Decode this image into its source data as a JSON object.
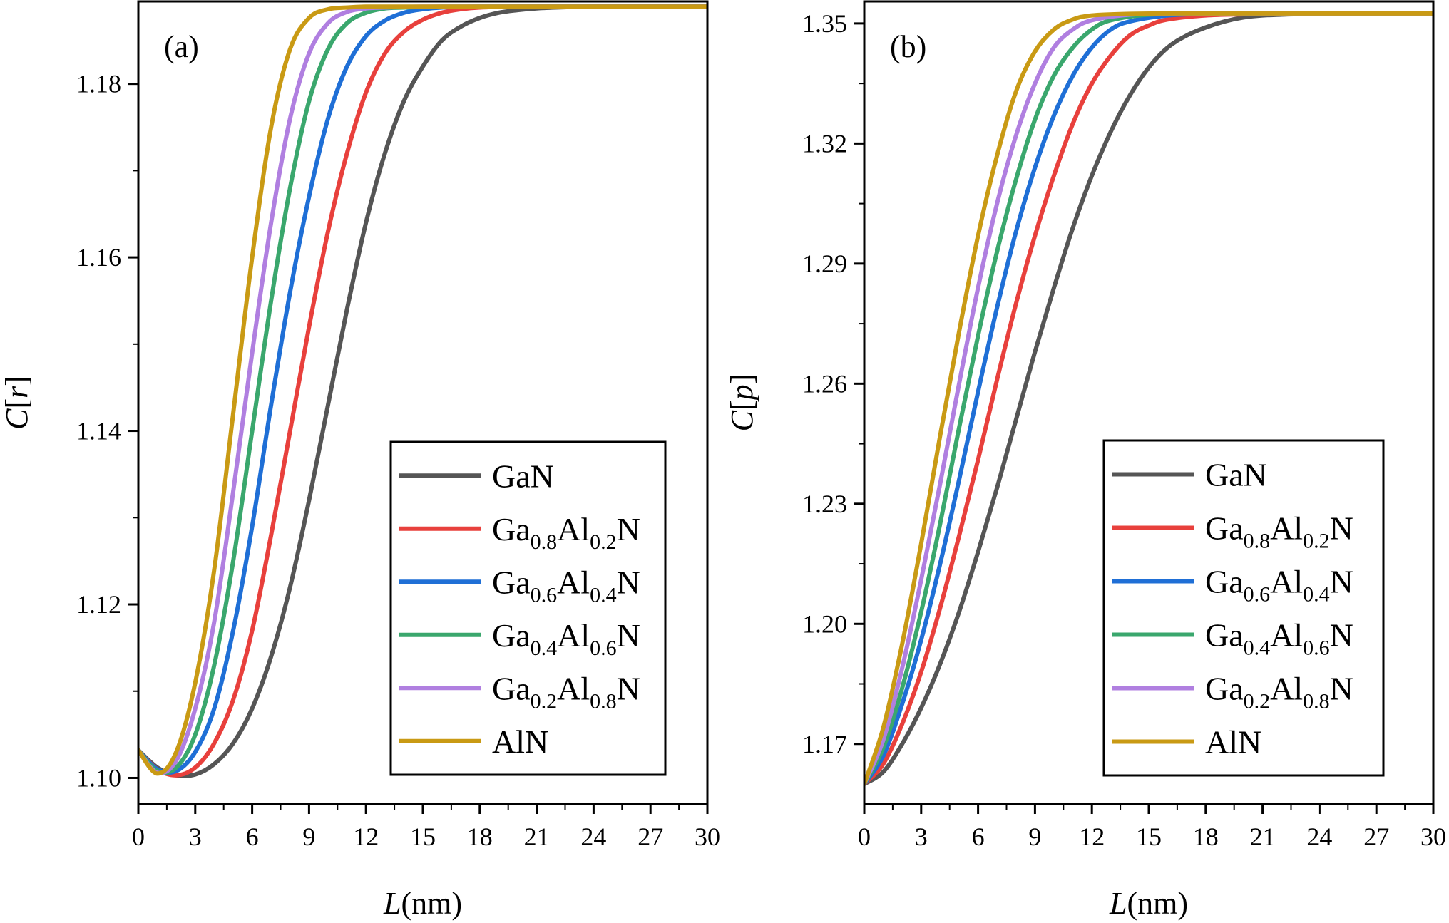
{
  "chart_data": [
    {
      "panel": "(a)",
      "type": "line",
      "xlabel_var": "L",
      "xlabel_unit": "(nm)",
      "ylabel_var": "C",
      "ylabel_bracket": "r",
      "xlim": [
        0,
        30
      ],
      "ylim": [
        1.097,
        1.1895
      ],
      "xticks": [
        0,
        3,
        6,
        9,
        12,
        15,
        18,
        21,
        24,
        27,
        30
      ],
      "xtick_labels": [
        "0",
        "3",
        "6",
        "9",
        "12",
        "15",
        "18",
        "21",
        "24",
        "27",
        "30"
      ],
      "yticks": [
        1.1,
        1.12,
        1.14,
        1.16,
        1.18
      ],
      "ytick_labels": [
        "1.10",
        "1.12",
        "1.14",
        "1.16",
        "1.18"
      ],
      "legend_position": "bottom-right",
      "series": [
        {
          "name": "GaN",
          "base": "GaN",
          "color": "#555555",
          "x": [
            0,
            1,
            2,
            3,
            4,
            5,
            6,
            7,
            8,
            9,
            10,
            11,
            12,
            13,
            14,
            15,
            16,
            17,
            18,
            19,
            20,
            21,
            22,
            24,
            26,
            28,
            30
          ],
          "values": [
            1.1032,
            1.1012,
            1.1003,
            1.1004,
            1.1016,
            1.104,
            1.108,
            1.114,
            1.122,
            1.132,
            1.143,
            1.154,
            1.164,
            1.172,
            1.178,
            1.182,
            1.185,
            1.1866,
            1.1876,
            1.1882,
            1.1885,
            1.1887,
            1.1888,
            1.1889,
            1.1889,
            1.1889,
            1.1889
          ]
        },
        {
          "name": "Ga0.8Al0.2N",
          "base": "Ga",
          "sub1": "0.8",
          "mid": "Al",
          "sub2": "0.2",
          "end": "N",
          "color": "#e8403c",
          "x": [
            0,
            1,
            2,
            3,
            4,
            5,
            6,
            7,
            8,
            9,
            10,
            11,
            12,
            13,
            14,
            15,
            16,
            17,
            18,
            20,
            22,
            24,
            27,
            30
          ],
          "values": [
            1.1032,
            1.101,
            1.1003,
            1.1012,
            1.104,
            1.109,
            1.117,
            1.128,
            1.14,
            1.152,
            1.163,
            1.172,
            1.179,
            1.1835,
            1.186,
            1.1874,
            1.1882,
            1.1886,
            1.1888,
            1.1889,
            1.1889,
            1.1889,
            1.1889,
            1.1889
          ]
        },
        {
          "name": "Ga0.6Al0.4N",
          "base": "Ga",
          "sub1": "0.6",
          "mid": "Al",
          "sub2": "0.4",
          "end": "N",
          "color": "#1f6fd6",
          "x": [
            0,
            1,
            2,
            3,
            4,
            5,
            6,
            7,
            8,
            9,
            10,
            11,
            12,
            13,
            14,
            15,
            16,
            18,
            21,
            24,
            27,
            30
          ],
          "values": [
            1.1032,
            1.101,
            1.1008,
            1.103,
            1.108,
            1.117,
            1.129,
            1.143,
            1.156,
            1.167,
            1.176,
            1.182,
            1.1855,
            1.1873,
            1.1882,
            1.1886,
            1.1888,
            1.1889,
            1.1889,
            1.1889,
            1.1889,
            1.1889
          ]
        },
        {
          "name": "Ga0.4Al0.6N",
          "base": "Ga",
          "sub1": "0.4",
          "mid": "Al",
          "sub2": "0.6",
          "end": "N",
          "color": "#3aa76d",
          "x": [
            0,
            1,
            2,
            3,
            4,
            5,
            6,
            7,
            8,
            9,
            10,
            11,
            12,
            13,
            14,
            16,
            18,
            21,
            24,
            27,
            30
          ],
          "values": [
            1.1032,
            1.1008,
            1.1012,
            1.105,
            1.113,
            1.125,
            1.14,
            1.155,
            1.168,
            1.178,
            1.184,
            1.187,
            1.1882,
            1.1887,
            1.1888,
            1.1889,
            1.1889,
            1.1889,
            1.1889,
            1.1889,
            1.1889
          ]
        },
        {
          "name": "Ga0.2Al0.8N",
          "base": "Ga",
          "sub1": "0.2",
          "mid": "Al",
          "sub2": "0.8",
          "end": "N",
          "color": "#b07fe0",
          "x": [
            0,
            1,
            2,
            3,
            4,
            5,
            6,
            7,
            8,
            9,
            10,
            11,
            12,
            13,
            15,
            18,
            21,
            24,
            27,
            30
          ],
          "values": [
            1.1032,
            1.1006,
            1.102,
            1.108,
            1.118,
            1.133,
            1.149,
            1.164,
            1.176,
            1.1835,
            1.187,
            1.1883,
            1.1887,
            1.1888,
            1.1889,
            1.1889,
            1.1889,
            1.1889,
            1.1889,
            1.1889
          ]
        },
        {
          "name": "AlN",
          "base": "AlN",
          "color": "#c99a14",
          "x": [
            0,
            1,
            2,
            3,
            4,
            5,
            6,
            7,
            8,
            9,
            10,
            11,
            12,
            14,
            16,
            18,
            21,
            24,
            27,
            30
          ],
          "values": [
            1.1032,
            1.1005,
            1.103,
            1.111,
            1.124,
            1.142,
            1.16,
            1.175,
            1.184,
            1.1876,
            1.1886,
            1.1888,
            1.1889,
            1.1889,
            1.1889,
            1.1889,
            1.1889,
            1.1889,
            1.1889,
            1.1889
          ]
        }
      ]
    },
    {
      "panel": "(b)",
      "type": "line",
      "xlabel_var": "L",
      "xlabel_unit": "(nm)",
      "ylabel_var": "C",
      "ylabel_bracket": "p",
      "xlim": [
        0,
        30
      ],
      "ylim": [
        1.155,
        1.3555
      ],
      "xticks": [
        0,
        3,
        6,
        9,
        12,
        15,
        18,
        21,
        24,
        27,
        30
      ],
      "xtick_labels": [
        "0",
        "3",
        "6",
        "9",
        "12",
        "15",
        "18",
        "21",
        "24",
        "27",
        "30"
      ],
      "yticks": [
        1.17,
        1.2,
        1.23,
        1.26,
        1.29,
        1.32,
        1.35
      ],
      "ytick_labels": [
        "1.17",
        "1.20",
        "1.23",
        "1.26",
        "1.29",
        "1.32",
        "1.35"
      ],
      "legend_position": "bottom-right",
      "series": [
        {
          "name": "GaN",
          "base": "GaN",
          "color": "#555555",
          "x": [
            0,
            1,
            2,
            3,
            4,
            5,
            6,
            7,
            8,
            9,
            10,
            11,
            12,
            13,
            14,
            15,
            16,
            17,
            18,
            19,
            20,
            21,
            22,
            24,
            26,
            28,
            30
          ],
          "values": [
            1.16,
            1.163,
            1.17,
            1.179,
            1.19,
            1.203,
            1.218,
            1.234,
            1.251,
            1.268,
            1.284,
            1.299,
            1.312,
            1.323,
            1.332,
            1.339,
            1.344,
            1.347,
            1.349,
            1.3505,
            1.3515,
            1.352,
            1.3522,
            1.3525,
            1.3525,
            1.3525,
            1.3525
          ]
        },
        {
          "name": "Ga0.8Al0.2N",
          "base": "Ga",
          "sub1": "0.8",
          "mid": "Al",
          "sub2": "0.2",
          "end": "N",
          "color": "#e8403c",
          "x": [
            0,
            1,
            2,
            3,
            4,
            5,
            6,
            7,
            8,
            9,
            10,
            11,
            12,
            13,
            14,
            15,
            16,
            18,
            20,
            22,
            24,
            27,
            30
          ],
          "values": [
            1.16,
            1.165,
            1.175,
            1.188,
            1.204,
            1.222,
            1.241,
            1.261,
            1.28,
            1.297,
            1.312,
            1.325,
            1.335,
            1.342,
            1.347,
            1.3495,
            1.351,
            1.352,
            1.3523,
            1.3525,
            1.3525,
            1.3525,
            1.3525
          ]
        },
        {
          "name": "Ga0.6Al0.4N",
          "base": "Ga",
          "sub1": "0.6",
          "mid": "Al",
          "sub2": "0.4",
          "end": "N",
          "color": "#1f6fd6",
          "x": [
            0,
            1,
            2,
            3,
            4,
            5,
            6,
            7,
            8,
            9,
            10,
            11,
            12,
            13,
            14,
            16,
            18,
            21,
            24,
            27,
            30
          ],
          "values": [
            1.16,
            1.167,
            1.18,
            1.196,
            1.215,
            1.236,
            1.258,
            1.279,
            1.298,
            1.314,
            1.327,
            1.337,
            1.344,
            1.3485,
            1.3505,
            1.352,
            1.3524,
            1.3525,
            1.3525,
            1.3525,
            1.3525
          ]
        },
        {
          "name": "Ga0.4Al0.6N",
          "base": "Ga",
          "sub1": "0.4",
          "mid": "Al",
          "sub2": "0.6",
          "end": "N",
          "color": "#3aa76d",
          "x": [
            0,
            1,
            2,
            3,
            4,
            5,
            6,
            7,
            8,
            9,
            10,
            11,
            12,
            13,
            15,
            18,
            21,
            24,
            27,
            30
          ],
          "values": [
            1.16,
            1.169,
            1.184,
            1.203,
            1.225,
            1.249,
            1.272,
            1.293,
            1.311,
            1.326,
            1.337,
            1.344,
            1.3485,
            1.3508,
            1.3522,
            1.3525,
            1.3525,
            1.3525,
            1.3525,
            1.3525
          ]
        },
        {
          "name": "Ga0.2Al0.8N",
          "base": "Ga",
          "sub1": "0.2",
          "mid": "Al",
          "sub2": "0.8",
          "end": "N",
          "color": "#b07fe0",
          "x": [
            0,
            1,
            2,
            3,
            4,
            5,
            6,
            7,
            8,
            9,
            10,
            11,
            12,
            14,
            16,
            18,
            21,
            24,
            27,
            30
          ],
          "values": [
            1.16,
            1.171,
            1.189,
            1.211,
            1.235,
            1.26,
            1.284,
            1.305,
            1.322,
            1.335,
            1.344,
            1.3485,
            1.3508,
            1.3522,
            1.3525,
            1.3525,
            1.3525,
            1.3525,
            1.3525,
            1.3525
          ]
        },
        {
          "name": "AlN",
          "base": "AlN",
          "color": "#c99a14",
          "x": [
            0,
            1,
            2,
            3,
            4,
            5,
            6,
            7,
            8,
            9,
            10,
            11,
            12,
            14,
            16,
            18,
            21,
            24,
            27,
            30
          ],
          "values": [
            1.16,
            1.174,
            1.195,
            1.22,
            1.247,
            1.273,
            1.297,
            1.317,
            1.333,
            1.343,
            1.3485,
            1.351,
            1.352,
            1.3524,
            1.3525,
            1.3525,
            1.3525,
            1.3525,
            1.3525,
            1.3525
          ]
        }
      ]
    }
  ]
}
